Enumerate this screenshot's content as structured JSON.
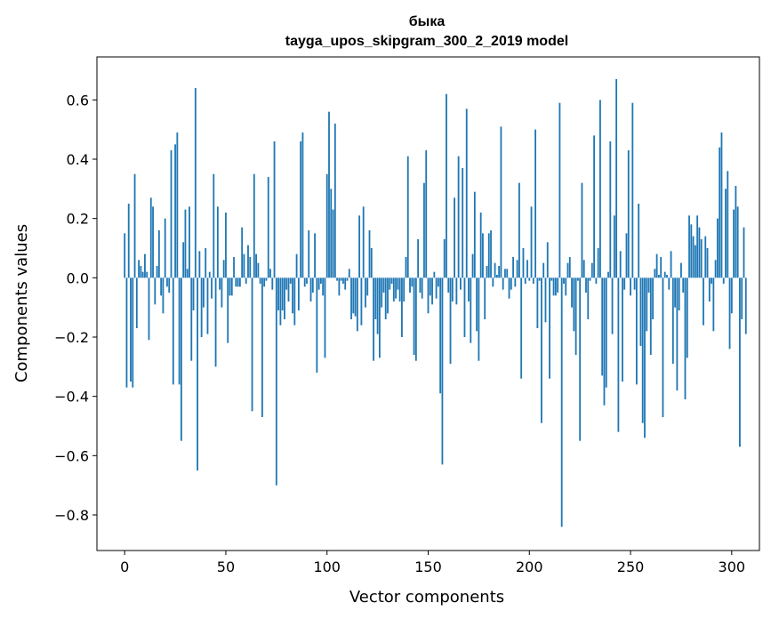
{
  "chart_data": {
    "type": "bar",
    "title": "быка",
    "subtitle": "tayga_upos_skipgram_300_2_2019 model",
    "xlabel": "Vector components",
    "ylabel": "Components values",
    "xlim": [
      -13.7,
      313.7
    ],
    "ylim": [
      -0.92,
      0.745
    ],
    "xticks": [
      0,
      50,
      100,
      150,
      200,
      250,
      300
    ],
    "yticks": [
      0.6,
      0.4,
      0.2,
      0.0,
      -0.2,
      -0.4,
      -0.6,
      -0.8
    ],
    "ytick_labels": [
      "0.6",
      "0.4",
      "0.2",
      "0.0",
      "−0.2",
      "−0.4",
      "−0.6",
      "−0.8"
    ],
    "xtick_labels": [
      "0",
      "50",
      "100",
      "150",
      "200",
      "250",
      "300"
    ],
    "grid": false,
    "color": "#1f77b4",
    "values": [
      0.15,
      -0.37,
      0.25,
      -0.35,
      -0.37,
      0.35,
      -0.17,
      0.06,
      0.04,
      0.02,
      0.08,
      0.02,
      -0.21,
      0.27,
      0.24,
      -0.09,
      0.04,
      0.16,
      -0.06,
      -0.12,
      0.2,
      -0.03,
      -0.05,
      0.43,
      -0.36,
      0.45,
      0.49,
      -0.36,
      -0.55,
      0.12,
      0.23,
      0.03,
      0.24,
      -0.28,
      -0.11,
      0.64,
      -0.65,
      0.09,
      -0.2,
      -0.1,
      0.1,
      -0.19,
      0.02,
      -0.07,
      0.35,
      -0.3,
      0.24,
      -0.04,
      -0.1,
      0.06,
      0.22,
      -0.22,
      -0.06,
      -0.06,
      0.07,
      -0.03,
      -0.03,
      -0.03,
      0.17,
      0.08,
      -0.02,
      0.11,
      0.07,
      -0.45,
      0.35,
      0.08,
      0.05,
      -0.02,
      -0.47,
      -0.03,
      -0.01,
      0.34,
      0.03,
      -0.04,
      0.46,
      -0.7,
      -0.11,
      -0.16,
      -0.11,
      -0.14,
      -0.04,
      -0.08,
      -0.02,
      -0.12,
      -0.16,
      0.08,
      -0.11,
      0.46,
      0.49,
      -0.03,
      -0.02,
      0.16,
      -0.08,
      -0.05,
      0.15,
      -0.32,
      -0.04,
      -0.02,
      -0.06,
      -0.27,
      0.35,
      0.56,
      0.3,
      0.23,
      0.52,
      -0.01,
      -0.06,
      -0.01,
      -0.02,
      -0.04,
      -0.01,
      0.03,
      -0.14,
      -0.12,
      -0.13,
      -0.18,
      0.21,
      -0.16,
      0.24,
      -0.1,
      -0.06,
      0.16,
      0.1,
      -0.28,
      -0.14,
      -0.19,
      -0.27,
      -0.1,
      -0.05,
      -0.14,
      -0.12,
      -0.04,
      -0.02,
      -0.08,
      -0.07,
      -0.04,
      -0.08,
      -0.2,
      -0.08,
      0.07,
      0.41,
      -0.05,
      -0.03,
      -0.26,
      -0.28,
      0.13,
      -0.05,
      -0.07,
      0.32,
      0.43,
      -0.12,
      -0.06,
      -0.09,
      0.02,
      -0.07,
      -0.03,
      -0.39,
      -0.63,
      0.13,
      0.62,
      -0.05,
      -0.29,
      -0.08,
      0.27,
      -0.09,
      0.41,
      -0.04,
      0.37,
      -0.2,
      0.57,
      -0.08,
      -0.22,
      0.08,
      0.29,
      -0.18,
      -0.28,
      0.22,
      0.15,
      -0.14,
      0.04,
      0.15,
      0.16,
      -0.03,
      0.05,
      0.01,
      0.04,
      0.51,
      -0.04,
      0.03,
      0.03,
      -0.07,
      -0.04,
      0.07,
      -0.03,
      0.06,
      0.32,
      -0.34,
      0.1,
      -0.02,
      0.06,
      -0.01,
      0.24,
      -0.02,
      0.5,
      -0.17,
      -0.01,
      -0.49,
      0.05,
      -0.15,
      0.12,
      -0.34,
      -0.01,
      -0.06,
      -0.06,
      -0.05,
      0.59,
      -0.84,
      -0.02,
      -0.06,
      0.05,
      0.07,
      -0.1,
      -0.18,
      -0.26,
      -0.01,
      -0.55,
      0.32,
      0.06,
      -0.05,
      -0.14,
      -0.01,
      0.05,
      0.48,
      -0.02,
      0.1,
      0.6,
      -0.33,
      -0.43,
      -0.37,
      0.02,
      0.46,
      -0.19,
      0.21,
      0.67,
      -0.52,
      0.09,
      -0.35,
      -0.04,
      0.15,
      0.43,
      -0.06,
      0.59,
      -0.04,
      -0.36,
      0.25,
      -0.23,
      -0.49,
      -0.54,
      -0.18,
      -0.05,
      -0.26,
      -0.14,
      0.03,
      0.08,
      0.01,
      0.07,
      -0.47,
      0.02,
      0.01,
      -0.04,
      0.09,
      -0.29,
      -0.1,
      -0.38,
      -0.11,
      0.05,
      -0.05,
      -0.41,
      -0.27,
      0.21,
      0.18,
      0.14,
      0.11,
      0.21,
      0.17,
      0.13,
      -0.16,
      0.14,
      0.1,
      -0.08,
      -0.02,
      -0.18,
      0.06,
      0.2,
      0.44,
      0.49,
      -0.02,
      0.3,
      0.36,
      -0.24,
      -0.12,
      0.23,
      0.31,
      0.24,
      -0.57,
      -0.14,
      0.17,
      -0.19
    ]
  }
}
